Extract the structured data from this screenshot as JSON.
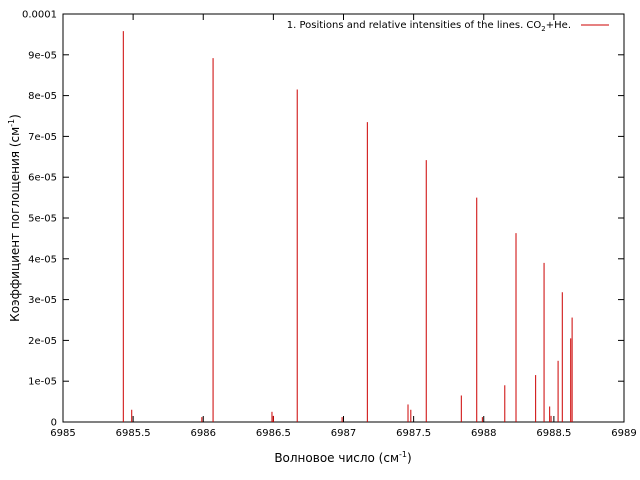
{
  "chart_data": {
    "type": "bar",
    "xlabel": "Волновое число (см",
    "xlabel_sup": "-1",
    "xlabel_end": ")",
    "ylabel": "Коэффициент поглощения (см",
    "ylabel_sup": "-1",
    "ylabel_end": ")",
    "xlim": [
      6985,
      6989
    ],
    "ylim": [
      0,
      0.0001
    ],
    "x_ticks": [
      6985,
      6985.5,
      6986,
      6986.5,
      6987,
      6987.5,
      6988,
      6988.5,
      6989
    ],
    "x_tick_labels": [
      "6985",
      "6985.5",
      "6986",
      "6986.5",
      "6987",
      "6987.5",
      "6988",
      "6988.5",
      "6989"
    ],
    "y_ticks": [
      0,
      1e-05,
      2e-05,
      3e-05,
      4e-05,
      5e-05,
      6e-05,
      7e-05,
      8e-05,
      9e-05,
      0.0001
    ],
    "y_tick_labels": [
      "0",
      "1e-05",
      "2e-05",
      "3e-05",
      "4e-05",
      "5e-05",
      "6e-05",
      "7e-05",
      "8e-05",
      "9e-05",
      "0.0001"
    ],
    "grid": false,
    "legend_position": "top-right",
    "series": [
      {
        "name": "1. Positions and relative intensities of the lines. CO2+He.",
        "color": "#cc0000",
        "x": [
          6985.43,
          6985.49,
          6985.99,
          6986.07,
          6986.49,
          6986.5,
          6986.67,
          6986.99,
          6987.17,
          6987.46,
          6987.48,
          6987.59,
          6987.84,
          6987.95,
          6987.99,
          6988.15,
          6988.23,
          6988.37,
          6988.43,
          6988.47,
          6988.48,
          6988.53,
          6988.56,
          6988.62,
          6988.63
        ],
        "y": [
          9.58e-05,
          3e-06,
          1.2e-06,
          8.92e-05,
          2.5e-06,
          1.5e-06,
          8.15e-05,
          1.2e-06,
          7.35e-05,
          4.3e-06,
          3e-06,
          6.42e-05,
          6.5e-06,
          5.5e-05,
          1.2e-06,
          9e-06,
          4.63e-05,
          1.15e-05,
          3.9e-05,
          3.8e-06,
          1.5e-06,
          1.5e-05,
          3.18e-05,
          2.05e-05,
          2.56e-05
        ]
      }
    ],
    "legend_label_main": "1. Positions and relative intensities of the lines. CO",
    "legend_label_sub": "2",
    "legend_label_end": "+He."
  }
}
